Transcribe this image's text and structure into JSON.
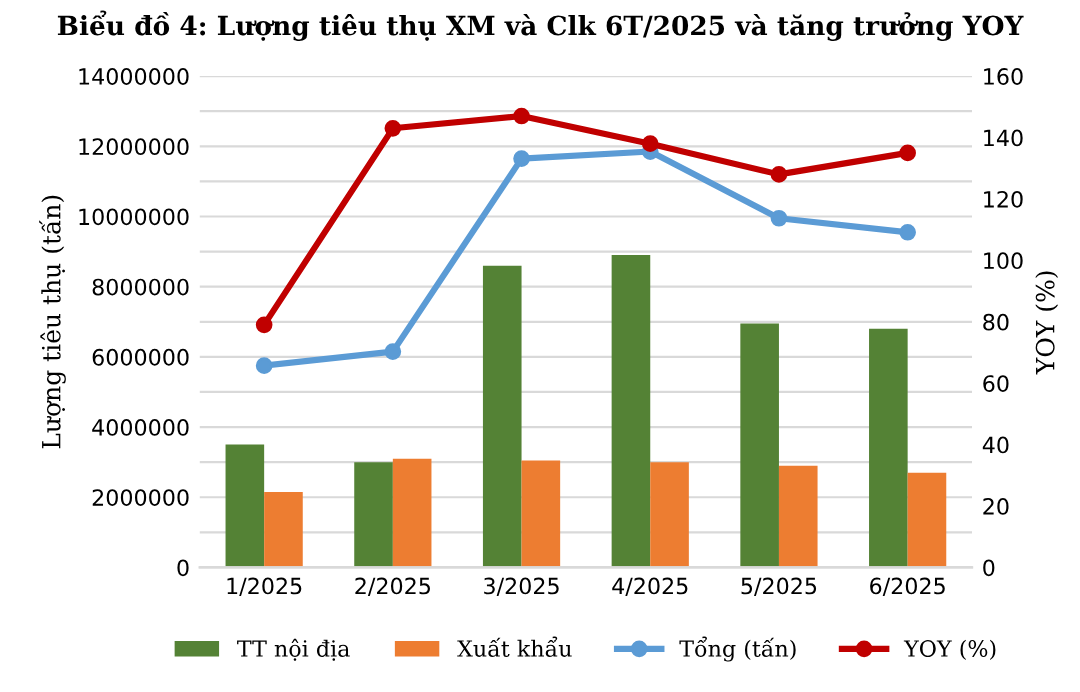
{
  "chart_data": {
    "type": "bar",
    "title": "Biểu đồ 4: Lượng tiêu thụ XM và Clk 6T/2025 và tăng trưởng YOY",
    "categories": [
      "1/2025",
      "2/2025",
      "3/2025",
      "4/2025",
      "5/2025",
      "6/2025"
    ],
    "series": [
      {
        "name": "TT nội địa",
        "color": "#548235",
        "values": [
          3500000,
          3000000,
          8600000,
          8900000,
          6950000,
          6800000
        ]
      },
      {
        "name": "Xuất khẩu",
        "color": "#ed7d31",
        "values": [
          2150000,
          3100000,
          3050000,
          3000000,
          2900000,
          2700000
        ]
      },
      {
        "name": "Tổng (tấn)",
        "type": "line",
        "color": "#5b9bd5",
        "marker": "circle",
        "values": [
          5750000,
          6150000,
          11650000,
          11850000,
          9950000,
          9550000
        ]
      },
      {
        "name": "YOY (%)",
        "type": "line",
        "color": "#c00000",
        "marker": "circle",
        "axis": "y2",
        "values": [
          79,
          143,
          147,
          138,
          128,
          135
        ]
      }
    ],
    "ylabel": "Lượng tiêu thụ (tấn)",
    "y2label": "YOY (%)",
    "ylim": [
      0,
      14000000
    ],
    "yticks": [
      0,
      {
        "value": 1000000,
        "label": null
      },
      2000000,
      {
        "value": 3000000,
        "label": null
      },
      4000000,
      {
        "value": 5000000,
        "label": null
      },
      6000000,
      {
        "value": 7000000,
        "label": null
      },
      8000000,
      {
        "value": 9000000,
        "label": null
      },
      10000000,
      {
        "value": 11000000,
        "label": null
      },
      12000000,
      {
        "value": 13000000,
        "label": null
      },
      14000000
    ],
    "y2lim": [
      0,
      160
    ],
    "y2ticks": [
      0,
      20,
      40,
      60,
      80,
      100,
      120,
      140,
      160
    ],
    "grid": "y",
    "legend": "bottom"
  }
}
